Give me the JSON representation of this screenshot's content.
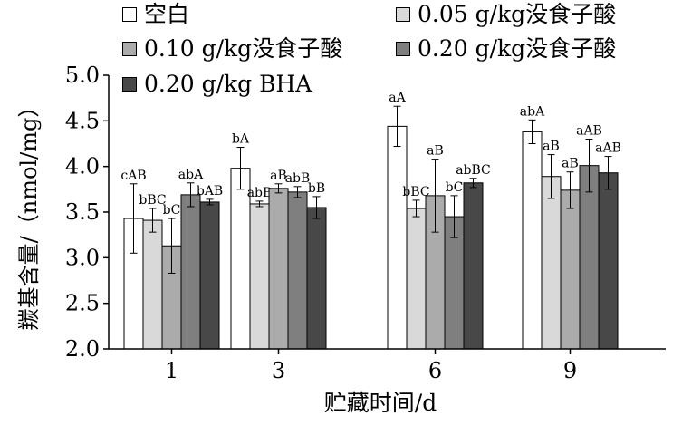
{
  "chart_data": {
    "type": "bar",
    "xlabel": "贮藏时间/d",
    "ylabel": "羰基含量/（nmol/mg）",
    "ylim": [
      2.0,
      5.0
    ],
    "yticks": [
      "2.0",
      "2.5",
      "3.0",
      "3.5",
      "4.0",
      "4.5",
      "5.0"
    ],
    "categories": [
      "1",
      "3",
      "6",
      "9"
    ],
    "grid": false,
    "legend_position": "top",
    "series": [
      {
        "name": "空白",
        "color": "#ffffff",
        "values": [
          3.43,
          3.98,
          4.44,
          4.38
        ],
        "errors": [
          0.38,
          0.23,
          0.22,
          0.13
        ],
        "labels": [
          "cAB",
          "bA",
          "aA",
          "abA"
        ]
      },
      {
        "name": "0.05 g/kg没食子酸",
        "color": "#d9d9d9",
        "values": [
          3.41,
          3.59,
          3.54,
          3.89
        ],
        "errors": [
          0.13,
          0.03,
          0.09,
          0.24
        ],
        "labels": [
          "bBC",
          "abB",
          "bBC",
          "aB"
        ]
      },
      {
        "name": "0.10 g/kg没食子酸",
        "color": "#ababab",
        "values": [
          3.13,
          3.76,
          3.68,
          3.74
        ],
        "errors": [
          0.3,
          0.05,
          0.4,
          0.2
        ],
        "labels": [
          "bC",
          "aB",
          "aB",
          "aB"
        ]
      },
      {
        "name": "0.20 g/kg没食子酸",
        "color": "#7f7f7f",
        "values": [
          3.69,
          3.72,
          3.45,
          4.01
        ],
        "errors": [
          0.13,
          0.06,
          0.23,
          0.29
        ],
        "labels": [
          "abA",
          "abB",
          "bC",
          "aAB"
        ]
      },
      {
        "name": "0.20 g/kg BHA",
        "color": "#484848",
        "values": [
          3.61,
          3.55,
          3.82,
          3.93
        ],
        "errors": [
          0.03,
          0.12,
          0.05,
          0.18
        ],
        "labels": [
          "bAB",
          "bB",
          "abBC",
          "aAB"
        ]
      }
    ]
  }
}
